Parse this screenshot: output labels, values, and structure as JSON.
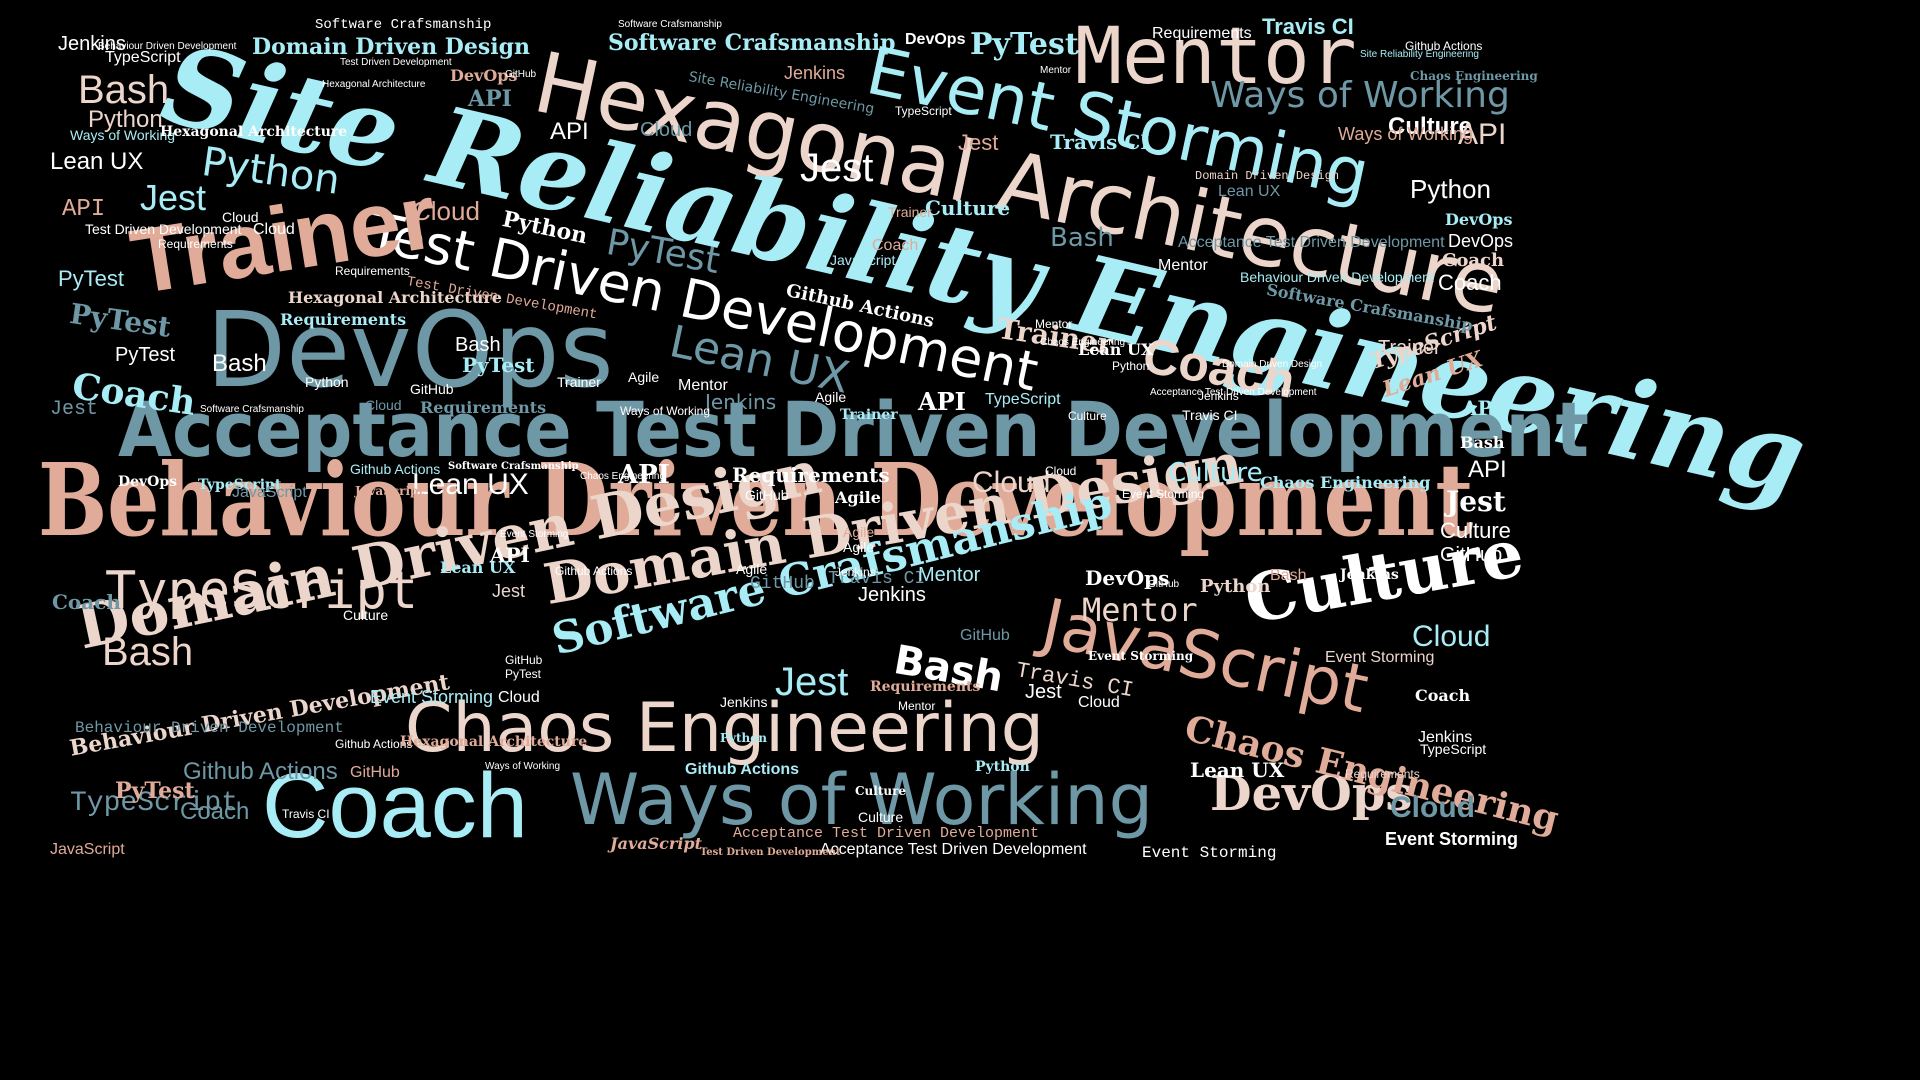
{
  "colors": {
    "background": "#000000",
    "cyan": "#a8ecf5",
    "ice": "#dff6f8",
    "slate": "#6f98a6",
    "peach": "#e0ab98",
    "cream": "#ecd5cb",
    "white": "#ffffff"
  },
  "words": [
    "Site Reliability Engineering",
    "Behaviour Driven Development",
    "Acceptance Test Driven Development",
    "Hexagonal Architecture",
    "Event Storming",
    "Mentor",
    "DevOps",
    "Test Driven Development",
    "Trainer",
    "Coach",
    "Chaos Engineering",
    "Ways of Working",
    "Domain Driven Design",
    "Software Crafsmanship",
    "JavaScript",
    "TypeScript",
    "Culture",
    "Lean UX",
    "Python",
    "Jest",
    "PyTest",
    "Bash",
    "Cloud",
    "API",
    "Jenkins",
    "Travis CI",
    "Github Actions",
    "GitHub",
    "Requirements",
    "Agile"
  ]
}
